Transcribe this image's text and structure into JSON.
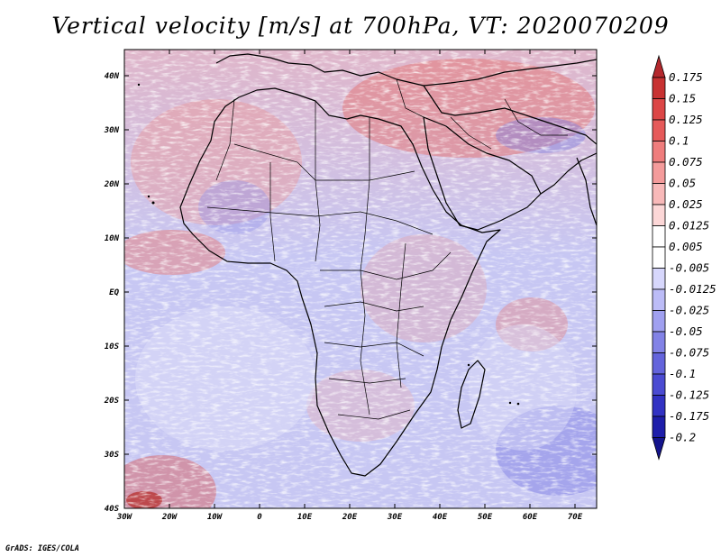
{
  "title": "Vertical velocity [m/s] at 700hPa, VT: 2020070209",
  "credit": "GrADS: IGES/COLA",
  "map": {
    "lat_ticks": [
      "40N",
      "30N",
      "20N",
      "10N",
      "EQ",
      "10S",
      "20S",
      "30S",
      "40S"
    ],
    "lon_ticks": [
      "30W",
      "20W",
      "10W",
      "0",
      "10E",
      "20E",
      "30E",
      "40E",
      "50E",
      "60E",
      "70E"
    ],
    "lon_range": [
      -30,
      75
    ],
    "lat_range": [
      -40,
      45
    ]
  },
  "colorbar": {
    "labels": [
      "0.175",
      "0.15",
      "0.125",
      "0.1",
      "0.075",
      "0.05",
      "0.025",
      "0.0125",
      "0.005",
      "-0.005",
      "-0.0125",
      "-0.025",
      "-0.05",
      "-0.075",
      "-0.1",
      "-0.125",
      "-0.175",
      "-0.2"
    ],
    "colors_top_to_bottom": [
      "#b4282d",
      "#c83232",
      "#dc4646",
      "#e65a5a",
      "#ef7d7d",
      "#f49b9b",
      "#f8b9b9",
      "#fcd7d7",
      "#ffffff",
      "#ffffff",
      "#d7d7fc",
      "#bcbcf7",
      "#a0a0f0",
      "#8282e6",
      "#6464dc",
      "#4b4bd2",
      "#3232c3",
      "#1e1eaa",
      "#14148c"
    ]
  }
}
